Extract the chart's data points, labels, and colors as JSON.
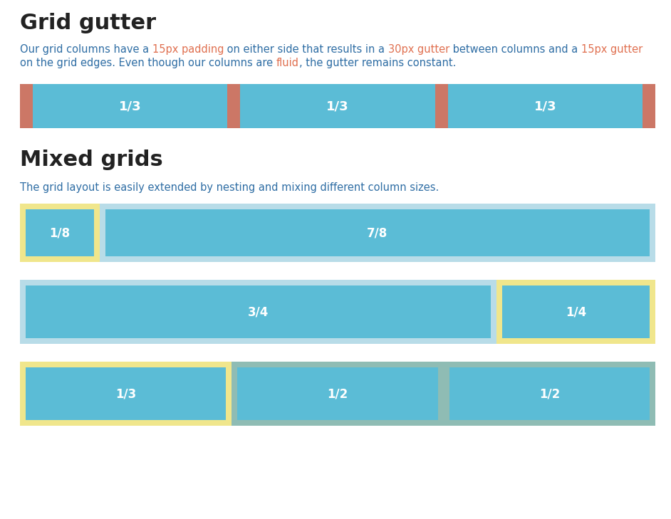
{
  "title1": "Grid gutter",
  "title2": "Mixed grids",
  "desc1_line1_plain": "Our grid columns have a ",
  "desc1_highlight1": "15px padding",
  "desc1_mid1": " on either side that results in a ",
  "desc1_highlight2": "30px gutter",
  "desc1_mid2": " between columns and a ",
  "desc1_highlight3": "15px gutter",
  "desc1_line2_plain": "on the grid edges. Even though our columns are ",
  "desc1_highlight4": "fluid",
  "desc1_end": ", the gutter remains constant.",
  "desc2": "The grid layout is easily extended by nesting and mixing different column sizes.",
  "gutter_color": "#cc7766",
  "blue_color": "#5bbcd6",
  "light_blue_bg": "#b8dce8",
  "yellow_bg": "#f0e68c",
  "teal_bg": "#8fbcb4",
  "bg_color": "#ffffff",
  "plain_text_color": "#2e6da4",
  "highlight_color": "#e07050",
  "label_color": "#ffffff",
  "title_color": "#222222"
}
